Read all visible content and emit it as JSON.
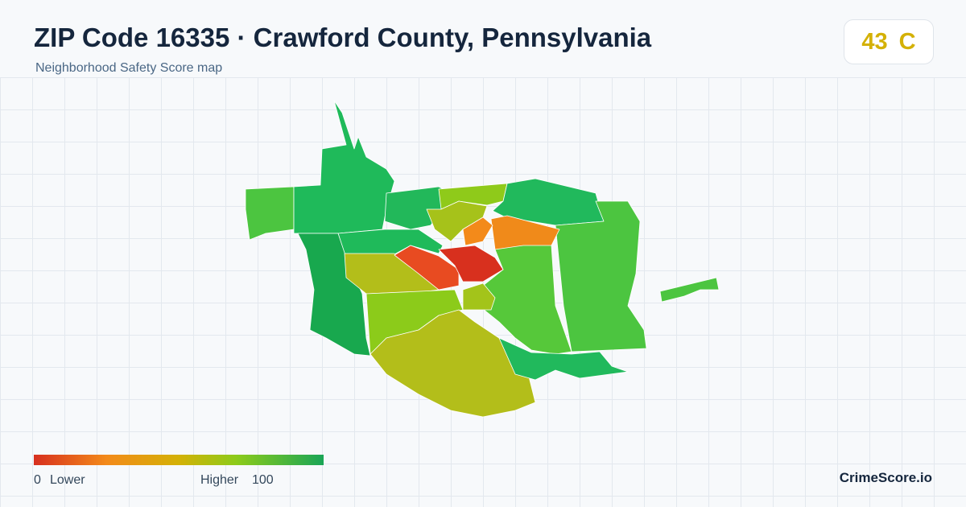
{
  "header": {
    "title": "ZIP Code 16335 · Crawford County, Pennsylvania",
    "subtitle": "Neighborhood Safety Score map",
    "score": 43,
    "grade": "C"
  },
  "legend": {
    "min": 0,
    "min_label": "Lower",
    "max_label": "Higher",
    "max": 100
  },
  "footer": {
    "brand": "CrimeScore.io"
  }
}
